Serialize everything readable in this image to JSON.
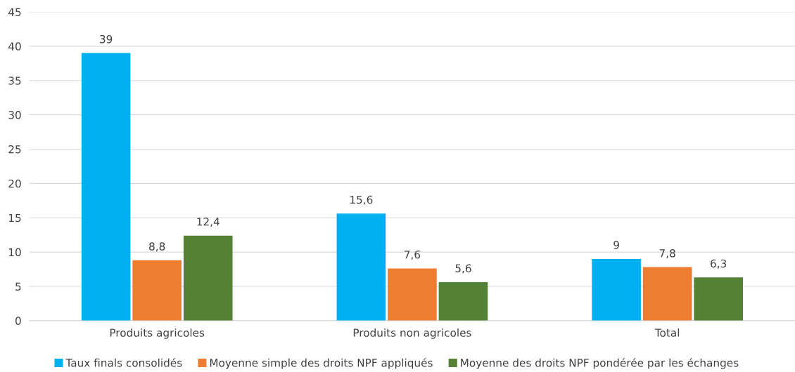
{
  "chart_data": {
    "type": "bar",
    "categories": [
      "Produits agricoles",
      "Produits non agricoles",
      "Total"
    ],
    "series": [
      {
        "name": "Taux finals consolidés",
        "color": "#00b0f0",
        "values": [
          39,
          15.6,
          9
        ],
        "value_labels": [
          "39",
          "15,6",
          "9"
        ]
      },
      {
        "name": "Moyenne simple des droits NPF appliqués",
        "color": "#ed7d31",
        "values": [
          8.8,
          7.6,
          7.8
        ],
        "value_labels": [
          "8,8",
          "7,6",
          "7,8"
        ]
      },
      {
        "name": "Moyenne des droits NPF pondérée par les échanges",
        "color": "#548235",
        "values": [
          12.4,
          5.6,
          6.3
        ],
        "value_labels": [
          "12,4",
          "5,6",
          "6,3"
        ]
      }
    ],
    "ylim": [
      0,
      45
    ],
    "yticks": [
      0,
      5,
      10,
      15,
      20,
      25,
      30,
      35,
      40,
      45
    ],
    "grid": "y",
    "legend": "bottom"
  }
}
